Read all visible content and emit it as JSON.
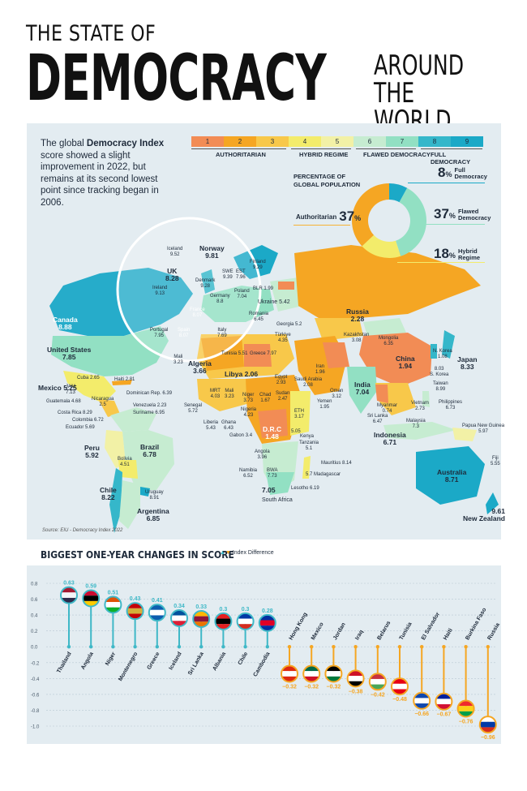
{
  "title": {
    "line1": "THE STATE OF",
    "line2": "DEMOCRACY",
    "line3a": "AROUND",
    "line3b": "THE WORLD"
  },
  "intro": {
    "part1": "The global ",
    "bold": "Democracy Index",
    "part2": " score showed a slight improvement in 2022, but remains at its second lowest point since tracking began in 2006."
  },
  "legend": {
    "scores": [
      "1",
      "2",
      "3",
      "4",
      "5",
      "6",
      "7",
      "8",
      "9"
    ],
    "colors": [
      "#f28c55",
      "#f5a623",
      "#f8c84a",
      "#f3ec6b",
      "#f2f1a6",
      "#c6ecd1",
      "#92e0c3",
      "#35b7ca",
      "#1ba9c7"
    ],
    "categories": [
      "AUTHORITARIAN",
      "HYBRID REGIME",
      "FLAWED DEMOCRACY",
      "FULL DEMOCRACY"
    ]
  },
  "population": {
    "title_line1": "PERCENTAGE OF",
    "title_line2": "GLOBAL POPULATION",
    "authoritarian": {
      "label": "Authoritarian",
      "value": "37",
      "unit": "%",
      "share": 37,
      "color": "#f5a623"
    },
    "full": {
      "label_line1": "Full",
      "label_line2": "Democracy",
      "value": "8",
      "unit": "%",
      "share": 8,
      "color": "#1ba9c7"
    },
    "flawed": {
      "label_line1": "Flawed",
      "label_line2": "Democracy",
      "value": "37",
      "unit": "%",
      "share": 37,
      "color": "#92e0c3"
    },
    "hybrid": {
      "label_line1": "Hybrid",
      "label_line2": "Regime",
      "value": "18",
      "unit": "%",
      "share": 18,
      "color": "#f3ec6b"
    }
  },
  "countries": [
    {
      "name": "Canada",
      "score": "8.88"
    },
    {
      "name": "United States",
      "score": "7.85"
    },
    {
      "name": "Mexico",
      "score": "5.25"
    },
    {
      "name": "Cuba",
      "score": "2.65"
    },
    {
      "name": "Haiti",
      "score": "2.81"
    },
    {
      "name": "Dominican Rep.",
      "score": "6.39"
    },
    {
      "name": "JAM",
      "score": "7.13"
    },
    {
      "name": "Nicaragua",
      "score": "2.5"
    },
    {
      "name": "Guatemala",
      "score": "4.68"
    },
    {
      "name": "Costa Rica",
      "score": "8.29"
    },
    {
      "name": "Venezuela",
      "score": "2.23"
    },
    {
      "name": "Suriname",
      "score": "6.95"
    },
    {
      "name": "Colombia",
      "score": "6.72"
    },
    {
      "name": "Ecuador",
      "score": "5.69"
    },
    {
      "name": "Peru",
      "score": "5.92"
    },
    {
      "name": "Brazil",
      "score": "6.78"
    },
    {
      "name": "Bolivia",
      "score": "4.51"
    },
    {
      "name": "Chile",
      "score": "8.22"
    },
    {
      "name": "Uruguay",
      "score": "8.91"
    },
    {
      "name": "Argentina",
      "score": "6.85"
    },
    {
      "name": "Iceland",
      "score": "9.52"
    },
    {
      "name": "Norway",
      "score": "9.81"
    },
    {
      "name": "UK",
      "score": "8.28"
    },
    {
      "name": "Ireland",
      "score": "9.13"
    },
    {
      "name": "Denmark",
      "score": "9.28"
    },
    {
      "name": "SWE",
      "score": "9.39"
    },
    {
      "name": "EST",
      "score": "7.96"
    },
    {
      "name": "Finland",
      "score": "9.29"
    },
    {
      "name": "Poland",
      "score": "7.04"
    },
    {
      "name": "BLR",
      "score": "1.99"
    },
    {
      "name": "Ukraine",
      "score": "5.42"
    },
    {
      "name": "Germany",
      "score": "8.8"
    },
    {
      "name": "France",
      "score": "8.07"
    },
    {
      "name": "Portugal",
      "score": "7.95"
    },
    {
      "name": "Spain",
      "score": "8.07"
    },
    {
      "name": "Italy",
      "score": "7.69"
    },
    {
      "name": "Romania",
      "score": "6.45"
    },
    {
      "name": "Georgia",
      "score": "5.2"
    },
    {
      "name": "Türkiye",
      "score": "4.35"
    },
    {
      "name": "Greece",
      "score": "7.97"
    },
    {
      "name": "Tunisia",
      "score": "5.51"
    },
    {
      "name": "Mali",
      "score": "3.23"
    },
    {
      "name": "Algeria",
      "score": "3.66"
    },
    {
      "name": "Libya",
      "score": "2.06"
    },
    {
      "name": "Egypt",
      "score": "2.93"
    },
    {
      "name": "Russia",
      "score": "2.28"
    },
    {
      "name": "Kazakhstan",
      "score": "3.08"
    },
    {
      "name": "Mongolia",
      "score": "6.35"
    },
    {
      "name": "China",
      "score": "1.94"
    },
    {
      "name": "N. Korea",
      "score": "1.08"
    },
    {
      "name": "S. Korea",
      "score": "8.03"
    },
    {
      "name": "Japan",
      "score": "8.33"
    },
    {
      "name": "Taiwan",
      "score": "8.99"
    },
    {
      "name": "Iran",
      "score": "1.96"
    },
    {
      "name": "Saudi Arabia",
      "score": "2.08"
    },
    {
      "name": "Oman",
      "score": "3.12"
    },
    {
      "name": "Yemen",
      "score": "1.95"
    },
    {
      "name": "India",
      "score": "7.04"
    },
    {
      "name": "Sri Lanka",
      "score": "6.47"
    },
    {
      "name": "Myanmar",
      "score": "0.74"
    },
    {
      "name": "Vietnam",
      "score": "2.73"
    },
    {
      "name": "Philippines",
      "score": "6.73"
    },
    {
      "name": "Malaysia",
      "score": "7.3"
    },
    {
      "name": "Indonesia",
      "score": "6.71"
    },
    {
      "name": "Papua New Guinea",
      "score": "5.97"
    },
    {
      "name": "Australia",
      "score": "8.71"
    },
    {
      "name": "New Zealand",
      "score": "9.61"
    },
    {
      "name": "Fiji",
      "score": "5.55"
    },
    {
      "name": "Senegal",
      "score": "5.72"
    },
    {
      "name": "MRT",
      "score": "4.03"
    },
    {
      "name": "Niger",
      "score": "3.73"
    },
    {
      "name": "Chad",
      "score": "1.67"
    },
    {
      "name": "Sudan",
      "score": "2.47"
    },
    {
      "name": "Nigeria",
      "score": "4.23"
    },
    {
      "name": "Liberia",
      "score": "5.43"
    },
    {
      "name": "Ghana",
      "score": "6.43"
    },
    {
      "name": "Gabon",
      "score": "3.4"
    },
    {
      "name": "ETH",
      "score": "3.17"
    },
    {
      "name": "D.R.C",
      "score": "1.48"
    },
    {
      "name": "Kenya",
      "score": "5.05"
    },
    {
      "name": "Tanzania",
      "score": "5.1"
    },
    {
      "name": "Angola",
      "score": "3.96"
    },
    {
      "name": "Namibia",
      "score": "6.52"
    },
    {
      "name": "BWA",
      "score": "7.73"
    },
    {
      "name": "Madagascar",
      "score": "5.7"
    },
    {
      "name": "Mauritius",
      "score": "8.14"
    },
    {
      "name": "Lesotho",
      "score": "6.19"
    },
    {
      "name": "South Africa",
      "score": "7.05"
    }
  ],
  "source": "Source: EIU - Democracy Index 2022",
  "chart": {
    "title": "BIGGEST ONE-YEAR CHANGES IN SCORE",
    "legend": "Index Difference"
  },
  "chart_data": {
    "type": "bar",
    "title": "BIGGEST ONE-YEAR CHANGES IN SCORE",
    "ylim": [
      -1.0,
      0.8
    ],
    "yticks": [
      "0.8",
      "0.6",
      "0.4",
      "0.2",
      "0.0",
      "-0.2",
      "-0.4",
      "-0.6",
      "-0.8",
      "-1.0"
    ],
    "categories": [
      "Thailand",
      "Angola",
      "Niger",
      "Montenegro",
      "Greece",
      "Iceland",
      "Sri Lanka",
      "Albania",
      "Chile",
      "Cambodia",
      "Hong Kong",
      "Mexico",
      "Jordan",
      "Iraq",
      "Belarus",
      "Tunisia",
      "El Salvador",
      "Haiti",
      "Burkina Faso",
      "Russia"
    ],
    "values": [
      0.63,
      0.59,
      0.51,
      0.43,
      0.41,
      0.34,
      0.33,
      0.3,
      0.3,
      0.28,
      -0.32,
      -0.32,
      -0.32,
      -0.38,
      -0.42,
      -0.48,
      -0.66,
      -0.67,
      -0.76,
      -0.96
    ],
    "labels": [
      "0.63",
      "0.59",
      "0.51",
      "0.43",
      "0.41",
      "0.34",
      "0.33",
      "0.3",
      "0.3",
      "0.28",
      "−0.32",
      "−0.32",
      "−0.32",
      "−0.38",
      "−0.42",
      "−0.48",
      "−0.66",
      "−0.67",
      "−0.76",
      "−0.96"
    ],
    "series": [
      {
        "name": "Index Difference"
      }
    ],
    "colors": {
      "positive": "#3fb8c7",
      "negative": "#f5a623"
    }
  }
}
